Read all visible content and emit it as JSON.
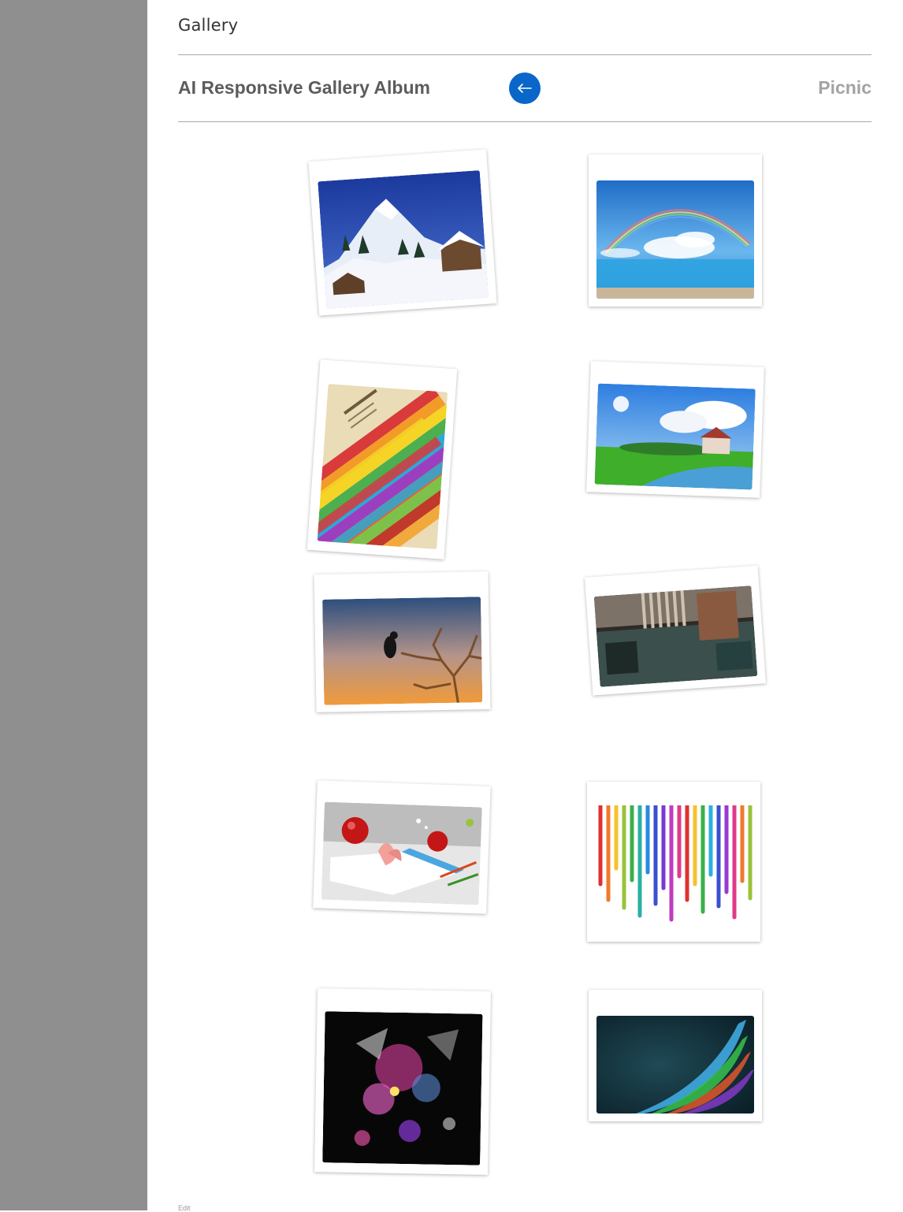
{
  "page": {
    "title": "Gallery"
  },
  "header": {
    "album_title": "AI Responsive Gallery Album",
    "back_icon": "left-arrow-icon",
    "album_name": "Picnic"
  },
  "gallery": {
    "photos": [
      {
        "subject": "snowy mountain with cabin"
      },
      {
        "subject": "rainbow over sea"
      },
      {
        "subject": "colorful striped design poster"
      },
      {
        "subject": "green meadow with river and house"
      },
      {
        "subject": "bird on branch at sunset"
      },
      {
        "subject": "city street looking up at buildings"
      },
      {
        "subject": "red apples with butterfly and book"
      },
      {
        "subject": "rainbow paint drips"
      },
      {
        "subject": "dark abstract colorful collage"
      },
      {
        "subject": "dark abstract color wave"
      }
    ]
  },
  "footer": {
    "text": "Edit"
  }
}
